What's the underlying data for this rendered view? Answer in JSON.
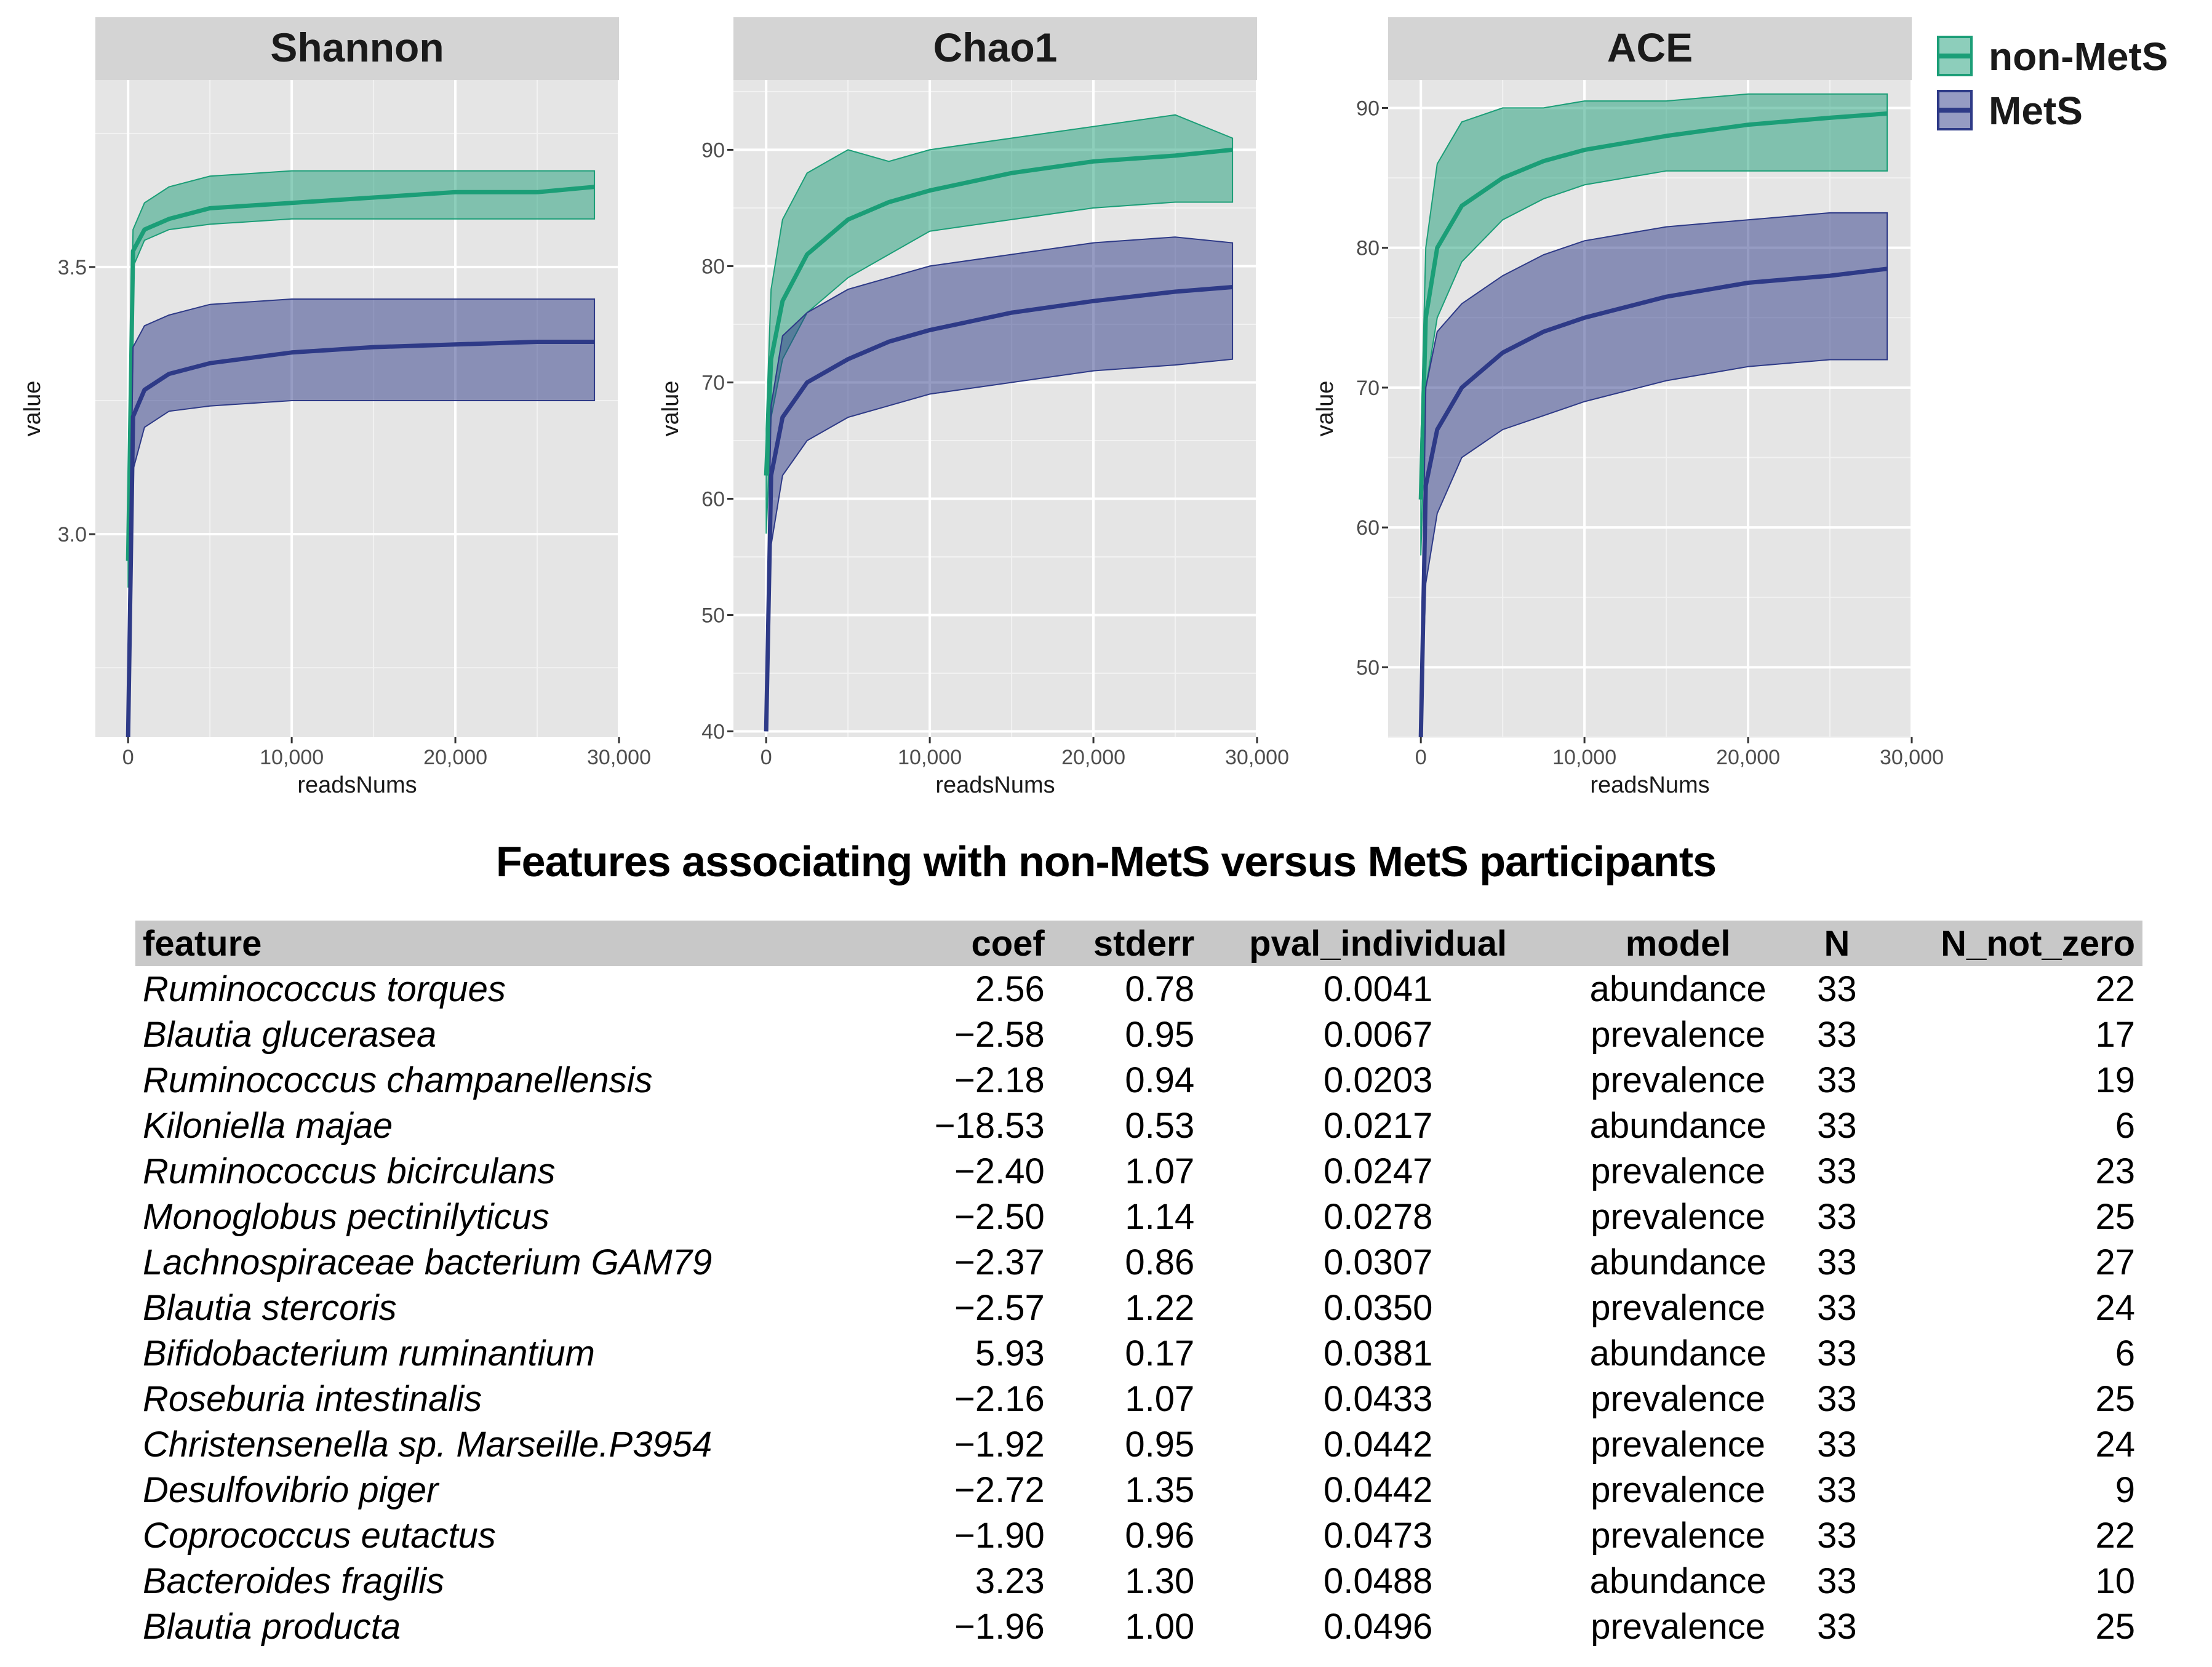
{
  "colors": {
    "non_mets": "#1b9e77",
    "mets": "#2e3a87",
    "panel_bg": "#e5e5e5",
    "strip_bg": "#d4d4d4"
  },
  "legend": {
    "items": [
      {
        "label": "non-MetS",
        "color": "#1b9e77"
      },
      {
        "label": "MetS",
        "color": "#2e3a87"
      }
    ]
  },
  "chart_data": [
    {
      "type": "area",
      "title": "Shannon",
      "xlabel": "readsNums",
      "ylabel": "value",
      "xlim": [
        -2000,
        30000
      ],
      "ylim": [
        2.62,
        3.85
      ],
      "x_ticks": [
        0,
        10000,
        20000,
        30000
      ],
      "x_tick_labels": [
        "0",
        "10,000",
        "20,000",
        "30,000"
      ],
      "y_ticks": [
        3.0,
        3.5
      ],
      "y_tick_labels": [
        "3.0",
        "3.5"
      ],
      "series": [
        {
          "name": "non-MetS",
          "x": [
            0,
            300,
            1000,
            2500,
            5000,
            10000,
            15000,
            20000,
            25000,
            28500
          ],
          "mean": [
            2.95,
            3.53,
            3.57,
            3.59,
            3.61,
            3.62,
            3.63,
            3.64,
            3.64,
            3.65
          ],
          "lower": [
            2.9,
            3.5,
            3.55,
            3.57,
            3.58,
            3.59,
            3.59,
            3.59,
            3.59,
            3.59
          ],
          "upper": [
            3.0,
            3.57,
            3.62,
            3.65,
            3.67,
            3.68,
            3.68,
            3.68,
            3.68,
            3.68
          ]
        },
        {
          "name": "MetS",
          "x": [
            0,
            300,
            1000,
            2500,
            5000,
            10000,
            15000,
            20000,
            25000,
            28500
          ],
          "mean": [
            2.62,
            3.22,
            3.27,
            3.3,
            3.32,
            3.34,
            3.35,
            3.355,
            3.36,
            3.36
          ],
          "lower": [
            2.62,
            3.12,
            3.2,
            3.23,
            3.24,
            3.25,
            3.25,
            3.25,
            3.25,
            3.25
          ],
          "upper": [
            2.7,
            3.35,
            3.39,
            3.41,
            3.43,
            3.44,
            3.44,
            3.44,
            3.44,
            3.44
          ]
        }
      ]
    },
    {
      "type": "area",
      "title": "Chao1",
      "xlabel": "readsNums",
      "ylabel": "value",
      "xlim": [
        -2000,
        30000
      ],
      "ylim": [
        39.5,
        96
      ],
      "x_ticks": [
        0,
        10000,
        20000,
        30000
      ],
      "x_tick_labels": [
        "0",
        "10,000",
        "20,000",
        "30,000"
      ],
      "y_ticks": [
        40,
        50,
        60,
        70,
        80,
        90
      ],
      "y_tick_labels": [
        "40",
        "50",
        "60",
        "70",
        "80",
        "90"
      ],
      "series": [
        {
          "name": "non-MetS",
          "x": [
            0,
            300,
            1000,
            2500,
            5000,
            7500,
            10000,
            15000,
            20000,
            25000,
            28500
          ],
          "mean": [
            62,
            72,
            77,
            81,
            84,
            85.5,
            86.5,
            88,
            89,
            89.5,
            90
          ],
          "lower": [
            57,
            67,
            72,
            76,
            79,
            81,
            83,
            84,
            85,
            85.5,
            85.5
          ],
          "upper": [
            66,
            78,
            84,
            88,
            90,
            89,
            90,
            91,
            92,
            93,
            91
          ]
        },
        {
          "name": "MetS",
          "x": [
            0,
            300,
            1000,
            2500,
            5000,
            7500,
            10000,
            15000,
            20000,
            25000,
            28500
          ],
          "mean": [
            40,
            62,
            67,
            70,
            72,
            73.5,
            74.5,
            76,
            77,
            77.8,
            78.2
          ],
          "lower": [
            40,
            56,
            62,
            65,
            67,
            68,
            69,
            70,
            71,
            71.5,
            72
          ],
          "upper": [
            44,
            68,
            74,
            76,
            78,
            79,
            80,
            81,
            82,
            82.5,
            82
          ]
        }
      ]
    },
    {
      "type": "area",
      "title": "ACE",
      "xlabel": "readsNums",
      "ylabel": "value",
      "xlim": [
        -2000,
        30000
      ],
      "ylim": [
        45,
        92
      ],
      "x_ticks": [
        0,
        10000,
        20000,
        30000
      ],
      "x_tick_labels": [
        "0",
        "10,000",
        "20,000",
        "30,000"
      ],
      "y_ticks": [
        50,
        60,
        70,
        80,
        90
      ],
      "y_tick_labels": [
        "50",
        "60",
        "70",
        "80",
        "90"
      ],
      "series": [
        {
          "name": "non-MetS",
          "x": [
            0,
            300,
            1000,
            2500,
            5000,
            7500,
            10000,
            15000,
            20000,
            25000,
            28500
          ],
          "mean": [
            62,
            75,
            80,
            83,
            85,
            86.2,
            87,
            88,
            88.8,
            89.3,
            89.6
          ],
          "lower": [
            58,
            70,
            75,
            79,
            82,
            83.5,
            84.5,
            85.5,
            85.5,
            85.5,
            85.5
          ],
          "upper": [
            66,
            80,
            86,
            89,
            90,
            90,
            90.5,
            90.5,
            91,
            91,
            91
          ]
        },
        {
          "name": "MetS",
          "x": [
            0,
            300,
            1000,
            2500,
            5000,
            7500,
            10000,
            15000,
            20000,
            25000,
            28500
          ],
          "mean": [
            45,
            63,
            67,
            70,
            72.5,
            74,
            75,
            76.5,
            77.5,
            78,
            78.5
          ],
          "lower": [
            45,
            56,
            61,
            65,
            67,
            68,
            69,
            70.5,
            71.5,
            72,
            72
          ],
          "upper": [
            48,
            70,
            74,
            76,
            78,
            79.5,
            80.5,
            81.5,
            82,
            82.5,
            82.5
          ]
        }
      ]
    }
  ],
  "table": {
    "title": "Features associating with non-MetS versus MetS participants",
    "headers": [
      "feature",
      "coef",
      "stderr",
      "pval_individual",
      "model",
      "N",
      "N_not_zero"
    ],
    "rows": [
      [
        "Ruminococcus torques",
        "2.56",
        "0.78",
        "0.0041",
        "abundance",
        "33",
        "22"
      ],
      [
        "Blautia glucerasea",
        "−2.58",
        "0.95",
        "0.0067",
        "prevalence",
        "33",
        "17"
      ],
      [
        "Ruminococcus champanellensis",
        "−2.18",
        "0.94",
        "0.0203",
        "prevalence",
        "33",
        "19"
      ],
      [
        "Kiloniella majae",
        "−18.53",
        "0.53",
        "0.0217",
        "abundance",
        "33",
        "6"
      ],
      [
        "Ruminococcus bicirculans",
        "−2.40",
        "1.07",
        "0.0247",
        "prevalence",
        "33",
        "23"
      ],
      [
        "Monoglobus pectinilyticus",
        "−2.50",
        "1.14",
        "0.0278",
        "prevalence",
        "33",
        "25"
      ],
      [
        "Lachnospiraceae bacterium GAM79",
        "−2.37",
        "0.86",
        "0.0307",
        "abundance",
        "33",
        "27"
      ],
      [
        "Blautia stercoris",
        "−2.57",
        "1.22",
        "0.0350",
        "prevalence",
        "33",
        "24"
      ],
      [
        "Bifidobacterium ruminantium",
        "5.93",
        "0.17",
        "0.0381",
        "abundance",
        "33",
        "6"
      ],
      [
        "Roseburia intestinalis",
        "−2.16",
        "1.07",
        "0.0433",
        "prevalence",
        "33",
        "25"
      ],
      [
        "Christensenella sp. Marseille.P3954",
        "−1.92",
        "0.95",
        "0.0442",
        "prevalence",
        "33",
        "24"
      ],
      [
        "Desulfovibrio piger",
        "−2.72",
        "1.35",
        "0.0442",
        "prevalence",
        "33",
        "9"
      ],
      [
        "Coprococcus eutactus",
        "−1.90",
        "0.96",
        "0.0473",
        "prevalence",
        "33",
        "22"
      ],
      [
        "Bacteroides fragilis",
        "3.23",
        "1.30",
        "0.0488",
        "abundance",
        "33",
        "10"
      ],
      [
        "Blautia producta",
        "−1.96",
        "1.00",
        "0.0496",
        "prevalence",
        "33",
        "25"
      ]
    ]
  }
}
